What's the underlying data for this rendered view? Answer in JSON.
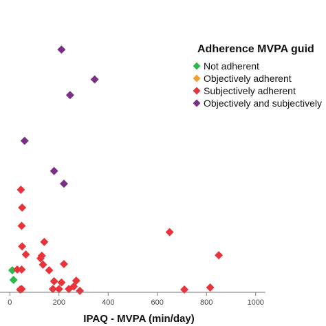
{
  "chart_data": {
    "type": "scatter",
    "title": "",
    "xlabel": "IPAQ - MVPA (min/day)",
    "ylabel": "",
    "xlim": [
      -40,
      1040
    ],
    "ylim": [
      0,
      100
    ],
    "x_ticks": [
      "0",
      "200",
      "400",
      "600",
      "800",
      "1000"
    ],
    "x_tick_values": [
      0,
      200,
      400,
      600,
      800,
      1000
    ],
    "grid": false,
    "legend": {
      "title": "Adherence MVPA guid",
      "placement": "top-right",
      "marker": "diamond"
    },
    "series": [
      {
        "name": "Not adherent",
        "color": "#2db84d",
        "points": [
          {
            "x": 10,
            "y": 8.2
          },
          {
            "x": 15,
            "y": 4.5
          }
        ]
      },
      {
        "name": "Objectively adherent",
        "color": "#f0a030",
        "points": []
      },
      {
        "name": "Subjectively adherent",
        "color": "#e8333a",
        "points": [
          {
            "x": 45,
            "y": 39.2
          },
          {
            "x": 50,
            "y": 32.3
          },
          {
            "x": 48,
            "y": 25.3
          },
          {
            "x": 50,
            "y": 17.4
          },
          {
            "x": 65,
            "y": 14.3
          },
          {
            "x": 48,
            "y": 8.5
          },
          {
            "x": 30,
            "y": 8.5
          },
          {
            "x": 48,
            "y": 1.0
          },
          {
            "x": 42,
            "y": 0.8
          },
          {
            "x": 130,
            "y": 13.8
          },
          {
            "x": 140,
            "y": 19.1
          },
          {
            "x": 125,
            "y": 12.8
          },
          {
            "x": 135,
            "y": 10.4
          },
          {
            "x": 160,
            "y": 8.2
          },
          {
            "x": 180,
            "y": 4.0
          },
          {
            "x": 210,
            "y": 3.5
          },
          {
            "x": 220,
            "y": 10.6
          },
          {
            "x": 175,
            "y": 1.0
          },
          {
            "x": 200,
            "y": 1.0
          },
          {
            "x": 240,
            "y": 1.0
          },
          {
            "x": 260,
            "y": 2.0
          },
          {
            "x": 270,
            "y": 4.2
          },
          {
            "x": 285,
            "y": 0.3
          },
          {
            "x": 650,
            "y": 22.9
          },
          {
            "x": 710,
            "y": 0.8
          },
          {
            "x": 815,
            "y": 1.6
          },
          {
            "x": 850,
            "y": 14.0
          }
        ]
      },
      {
        "name": "Objectively and subjectively",
        "color": "#7a2f86",
        "points": [
          {
            "x": 210,
            "y": 93.1
          },
          {
            "x": 345,
            "y": 81.6
          },
          {
            "x": 245,
            "y": 75.6
          },
          {
            "x": 60,
            "y": 58.0
          },
          {
            "x": 180,
            "y": 46.4
          },
          {
            "x": 220,
            "y": 41.5
          }
        ]
      }
    ]
  }
}
